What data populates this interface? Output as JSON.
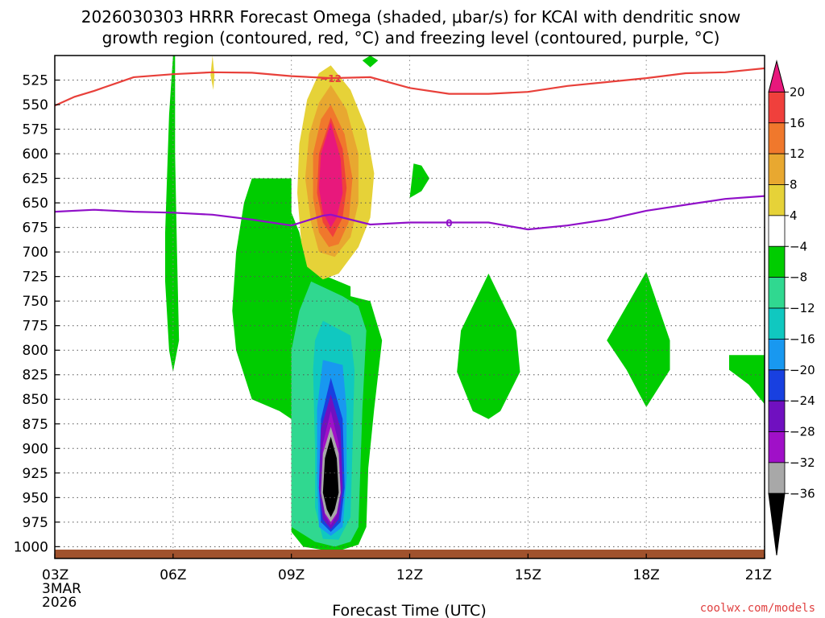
{
  "title_line1": "2026030303 HRRR Forecast Omega (shaded, μbar/s) for KCAI with dendritic snow",
  "title_line2": "growth region (contoured, red, °C) and freezing level (contoured, purple, °C)",
  "credit": "coolwx.com/models",
  "chart_data": {
    "type": "heatmap",
    "title": "2026030303 HRRR Forecast Omega (shaded, μbar/s) for KCAI with dendritic snow growth region (contoured, red, °C) and freezing level (contoured, purple, °C)",
    "xlabel": "Forecast Time (UTC)",
    "ylabel": "",
    "x_hours_range": [
      3,
      21
    ],
    "x_ticks": [
      {
        "hour": 3,
        "label": "03Z",
        "sub1": "3MAR",
        "sub2": "2026"
      },
      {
        "hour": 6,
        "label": "06Z"
      },
      {
        "hour": 9,
        "label": "09Z"
      },
      {
        "hour": 12,
        "label": "12Z"
      },
      {
        "hour": 15,
        "label": "15Z"
      },
      {
        "hour": 18,
        "label": "18Z"
      },
      {
        "hour": 21,
        "label": "21Z"
      }
    ],
    "y_levels": [
      525,
      550,
      575,
      600,
      625,
      650,
      675,
      700,
      725,
      750,
      775,
      800,
      825,
      850,
      875,
      900,
      925,
      950,
      975,
      1000
    ],
    "y_range_hpa": [
      500,
      1012
    ],
    "grid": true,
    "colorbar": {
      "labels": [
        "20",
        "16",
        "12",
        "8",
        "4",
        "−4",
        "−8",
        "−12",
        "−16",
        "−20",
        "−24",
        "−28",
        "−32",
        "−36"
      ],
      "colors": [
        "#e8187c",
        "#f0403c",
        "#f0782c",
        "#e8a830",
        "#e6d238",
        "#ffffff",
        "#00cc00",
        "#30d890",
        "#10c8c0",
        "#1898f0",
        "#1840e0",
        "#7010c0",
        "#a010c8",
        "#a8a8a8",
        "#000000"
      ]
    },
    "contours": [
      {
        "name": "dendritic growth region",
        "value_label": "−12",
        "color": "#e8403a",
        "points": [
          [
            3,
            551
          ],
          [
            3.5,
            542
          ],
          [
            4,
            536
          ],
          [
            4.5,
            529
          ],
          [
            5,
            522
          ],
          [
            6,
            519
          ],
          [
            7,
            517
          ],
          [
            8,
            517.5
          ],
          [
            9,
            521
          ],
          [
            10,
            523
          ],
          [
            11,
            522
          ],
          [
            12,
            533
          ],
          [
            13,
            539
          ],
          [
            14,
            539
          ],
          [
            15,
            537
          ],
          [
            16,
            531
          ],
          [
            17,
            527
          ],
          [
            18,
            523
          ],
          [
            19,
            518
          ],
          [
            20,
            517
          ],
          [
            21,
            513
          ]
        ]
      },
      {
        "name": "freezing level",
        "value_label": "0",
        "color": "#9010c8",
        "points": [
          [
            3,
            659
          ],
          [
            4,
            657
          ],
          [
            5,
            659
          ],
          [
            6,
            660
          ],
          [
            7,
            662
          ],
          [
            8,
            667
          ],
          [
            9,
            673
          ],
          [
            9.8,
            663
          ],
          [
            10,
            662
          ],
          [
            11,
            672
          ],
          [
            12,
            670
          ],
          [
            13,
            670
          ],
          [
            14,
            670
          ],
          [
            15,
            677
          ],
          [
            16,
            673
          ],
          [
            17,
            667
          ],
          [
            18,
            658
          ],
          [
            19,
            652
          ],
          [
            20,
            646
          ],
          [
            21,
            643
          ]
        ]
      }
    ],
    "omega_regions": [
      {
        "value_band": "-4 to -8",
        "color": "#00cc00",
        "points": [
          [
            6,
            500
          ],
          [
            5.9,
            560
          ],
          [
            5.8,
            680
          ],
          [
            5.8,
            730
          ],
          [
            5.9,
            800
          ],
          [
            6,
            822
          ],
          [
            6.15,
            790
          ],
          [
            6.1,
            700
          ],
          [
            6.05,
            600
          ],
          [
            6.05,
            520
          ],
          [
            6.05,
            500
          ]
        ]
      },
      {
        "value_band": "-4 to -8",
        "color": "#00cc00",
        "points": [
          [
            8,
            625
          ],
          [
            9,
            625
          ],
          [
            9,
            660
          ],
          [
            9.2,
            680
          ],
          [
            9.3,
            698
          ],
          [
            9.6,
            720
          ],
          [
            10.2,
            730
          ],
          [
            10.5,
            735
          ],
          [
            10.5,
            745
          ],
          [
            11,
            750
          ],
          [
            11.3,
            790
          ],
          [
            11.1,
            860
          ],
          [
            10.95,
            920
          ],
          [
            10.9,
            980
          ],
          [
            10.7,
            998
          ],
          [
            10.3,
            1003
          ],
          [
            9.9,
            1004
          ],
          [
            9.3,
            1000
          ],
          [
            9,
            985
          ],
          [
            9,
            870
          ],
          [
            8.7,
            862
          ],
          [
            8.0,
            850
          ],
          [
            7.6,
            800
          ],
          [
            7.5,
            760
          ],
          [
            7.6,
            700
          ],
          [
            7.8,
            650
          ]
        ]
      },
      {
        "value_band": "-4 to -8",
        "color": "#00cc00",
        "points": [
          [
            11,
            500
          ],
          [
            11.2,
            505
          ],
          [
            11.0,
            512
          ],
          [
            10.8,
            505
          ]
        ]
      },
      {
        "value_band": "-4 to -8",
        "color": "#00cc00",
        "points": [
          [
            12.1,
            610
          ],
          [
            12.3,
            612
          ],
          [
            12.5,
            625
          ],
          [
            12.3,
            638
          ],
          [
            12.0,
            645
          ]
        ]
      },
      {
        "value_band": "-4 to -8",
        "color": "#00cc00",
        "points": [
          [
            14.0,
            722
          ],
          [
            14.7,
            780
          ],
          [
            14.8,
            822
          ],
          [
            14.3,
            862
          ],
          [
            14.0,
            870
          ],
          [
            13.6,
            862
          ],
          [
            13.2,
            822
          ],
          [
            13.3,
            780
          ]
        ]
      },
      {
        "value_band": "-4 to -8",
        "color": "#00cc00",
        "points": [
          [
            18.0,
            720
          ],
          [
            18.6,
            790
          ],
          [
            18.6,
            820
          ],
          [
            18.0,
            858
          ],
          [
            17.5,
            820
          ],
          [
            17.0,
            790
          ]
        ]
      },
      {
        "value_band": "-4 to -8",
        "color": "#00cc00",
        "points": [
          [
            20.1,
            805
          ],
          [
            21,
            805
          ],
          [
            21,
            855
          ],
          [
            20.6,
            835
          ],
          [
            20.1,
            820
          ]
        ]
      },
      {
        "value_band": "4 to 8",
        "color": "#e6d238",
        "points": [
          [
            7,
            500
          ],
          [
            7.05,
            520
          ],
          [
            7.02,
            535
          ],
          [
            6.95,
            520
          ]
        ]
      },
      {
        "value_band": "-8 to -12",
        "color": "#30d890",
        "points": [
          [
            9.5,
            730
          ],
          [
            10.3,
            745
          ],
          [
            10.7,
            755
          ],
          [
            10.9,
            780
          ],
          [
            10.8,
            860
          ],
          [
            10.75,
            920
          ],
          [
            10.7,
            980
          ],
          [
            10.5,
            995
          ],
          [
            10.1,
            1000
          ],
          [
            9.6,
            995
          ],
          [
            9.0,
            980
          ],
          [
            9.0,
            870
          ],
          [
            9.0,
            800
          ],
          [
            9.2,
            760
          ]
        ]
      },
      {
        "value_band": "-12 to -16",
        "color": "#10c8c0",
        "points": [
          [
            9.8,
            770
          ],
          [
            10.5,
            785
          ],
          [
            10.6,
            820
          ],
          [
            10.55,
            900
          ],
          [
            10.5,
            970
          ],
          [
            10.2,
            993
          ],
          [
            9.8,
            992
          ],
          [
            9.6,
            960
          ],
          [
            9.6,
            900
          ],
          [
            9.55,
            820
          ],
          [
            9.6,
            790
          ]
        ]
      },
      {
        "value_band": "-16 to -20",
        "color": "#1898f0",
        "points": [
          [
            9.8,
            810
          ],
          [
            10.3,
            815
          ],
          [
            10.4,
            860
          ],
          [
            10.4,
            930
          ],
          [
            10.3,
            980
          ],
          [
            10.0,
            989
          ],
          [
            9.7,
            980
          ],
          [
            9.65,
            930
          ],
          [
            9.65,
            860
          ]
        ]
      },
      {
        "value_band": "-20 to -24",
        "color": "#1840e0",
        "points": [
          [
            10.0,
            828
          ],
          [
            10.3,
            870
          ],
          [
            10.35,
            940
          ],
          [
            10.25,
            975
          ],
          [
            10.0,
            985
          ],
          [
            9.75,
            975
          ],
          [
            9.7,
            940
          ],
          [
            9.75,
            870
          ]
        ]
      },
      {
        "value_band": "-24 to -28",
        "color": "#7010c0",
        "points": [
          [
            10.0,
            845
          ],
          [
            10.25,
            880
          ],
          [
            10.3,
            940
          ],
          [
            10.2,
            972
          ],
          [
            10.0,
            982
          ],
          [
            9.8,
            972
          ],
          [
            9.7,
            940
          ],
          [
            9.75,
            880
          ]
        ]
      },
      {
        "value_band": "-28 to -32",
        "color": "#a010c8",
        "points": [
          [
            10.0,
            862
          ],
          [
            10.2,
            895
          ],
          [
            10.25,
            940
          ],
          [
            10.15,
            968
          ],
          [
            10.0,
            978
          ],
          [
            9.85,
            968
          ],
          [
            9.75,
            940
          ],
          [
            9.8,
            895
          ]
        ]
      },
      {
        "value_band": "-32 to -36",
        "color": "#a8a8a8",
        "points": [
          [
            10.0,
            878
          ],
          [
            10.2,
            905
          ],
          [
            10.25,
            945
          ],
          [
            10.15,
            966
          ],
          [
            10.0,
            975
          ],
          [
            9.85,
            966
          ],
          [
            9.75,
            945
          ],
          [
            9.8,
            905
          ]
        ]
      },
      {
        "value_band": "< -36",
        "color": "#000000",
        "points": [
          [
            10.0,
            888
          ],
          [
            10.15,
            910
          ],
          [
            10.2,
            945
          ],
          [
            10.1,
            962
          ],
          [
            10.0,
            970
          ],
          [
            9.9,
            962
          ],
          [
            9.8,
            945
          ],
          [
            9.85,
            910
          ]
        ]
      },
      {
        "value_band": "4 to 8",
        "color": "#e6d238",
        "points": [
          [
            10.0,
            510
          ],
          [
            10.5,
            535
          ],
          [
            10.9,
            575
          ],
          [
            11.1,
            620
          ],
          [
            11.0,
            665
          ],
          [
            10.7,
            695
          ],
          [
            10.2,
            722
          ],
          [
            9.8,
            728
          ],
          [
            9.4,
            715
          ],
          [
            9.25,
            690
          ],
          [
            9.15,
            640
          ],
          [
            9.2,
            590
          ],
          [
            9.4,
            545
          ],
          [
            9.7,
            518
          ]
        ]
      },
      {
        "value_band": "8 to 12",
        "color": "#e8a830",
        "points": [
          [
            10.0,
            530
          ],
          [
            10.4,
            555
          ],
          [
            10.7,
            600
          ],
          [
            10.7,
            650
          ],
          [
            10.5,
            685
          ],
          [
            10.1,
            705
          ],
          [
            9.7,
            700
          ],
          [
            9.5,
            670
          ],
          [
            9.35,
            625
          ],
          [
            9.45,
            580
          ],
          [
            9.7,
            548
          ]
        ]
      },
      {
        "value_band": "12 to 16",
        "color": "#f0782c",
        "points": [
          [
            10.0,
            550
          ],
          [
            10.35,
            580
          ],
          [
            10.55,
            625
          ],
          [
            10.45,
            670
          ],
          [
            10.2,
            692
          ],
          [
            9.95,
            695
          ],
          [
            9.7,
            680
          ],
          [
            9.55,
            645
          ],
          [
            9.55,
            600
          ],
          [
            9.75,
            565
          ]
        ]
      },
      {
        "value_band": "16 to 20",
        "color": "#f0403c",
        "points": [
          [
            10.0,
            563
          ],
          [
            10.3,
            595
          ],
          [
            10.4,
            635
          ],
          [
            10.3,
            665
          ],
          [
            10.05,
            685
          ],
          [
            9.8,
            670
          ],
          [
            9.65,
            640
          ],
          [
            9.7,
            600
          ]
        ]
      },
      {
        "value_band": "> 20",
        "color": "#e8187c",
        "points": [
          [
            10.0,
            568
          ],
          [
            10.25,
            605
          ],
          [
            10.3,
            640
          ],
          [
            10.15,
            665
          ],
          [
            10.0,
            675
          ],
          [
            9.8,
            660
          ],
          [
            9.7,
            635
          ],
          [
            9.75,
            600
          ]
        ]
      }
    ],
    "terrain": {
      "color": "#a0522d",
      "pressure_hpa": 1003
    }
  }
}
